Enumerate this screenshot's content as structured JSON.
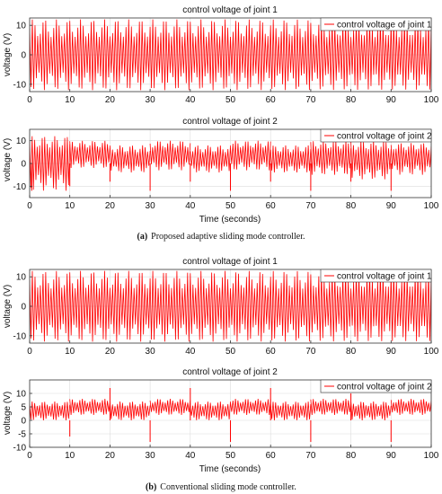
{
  "captions": {
    "a_label": "(a)",
    "a_text": "Proposed adaptive sliding mode controller.",
    "b_label": "(b)",
    "b_text": "Conventional sliding mode controller."
  },
  "colors": {
    "signal": "#ff0000",
    "axis": "#333333",
    "grid": "#dcdcdc"
  },
  "chart_data": [
    {
      "type": "line",
      "panel": "a",
      "title": "control voltage of joint 1",
      "xlabel": "",
      "ylabel": "voltage (V)",
      "xlim": [
        0,
        100
      ],
      "ylim": [
        -12.5,
        12.5
      ],
      "xticks": [
        0,
        10,
        20,
        30,
        40,
        50,
        60,
        70,
        80,
        90,
        100
      ],
      "yticks": [
        -10,
        0,
        10
      ],
      "grid": true,
      "legend": "top-right",
      "series": [
        {
          "name": "control voltage of joint 1",
          "segments": [
            {
              "x_start": 0,
              "x_end": 100,
              "min": -12,
              "max": 12,
              "center": 0,
              "oscillations_per_second": 3
            }
          ]
        }
      ]
    },
    {
      "type": "line",
      "panel": "a",
      "title": "control voltage of joint 2",
      "xlabel": "Time (seconds)",
      "ylabel": "voltage (V)",
      "xlim": [
        0,
        100
      ],
      "ylim": [
        -15,
        15
      ],
      "xticks": [
        0,
        10,
        20,
        30,
        40,
        50,
        60,
        70,
        80,
        90,
        100
      ],
      "yticks": [
        -10,
        0,
        10
      ],
      "grid": true,
      "legend": "top-right",
      "series": [
        {
          "name": "control voltage of joint 2",
          "segments": [
            {
              "x_start": 0,
              "x_end": 10,
              "min": -12,
              "max": 12,
              "center": 2
            },
            {
              "x_start": 10,
              "x_end": 20,
              "min": -2,
              "max": 10,
              "center": 4
            },
            {
              "x_start": 20,
              "x_end": 30,
              "min": -4,
              "max": 8,
              "center": 2
            },
            {
              "x_start": 30,
              "x_end": 40,
              "min": -3,
              "max": 10,
              "center": 4
            },
            {
              "x_start": 40,
              "x_end": 50,
              "min": -4,
              "max": 8,
              "center": 2
            },
            {
              "x_start": 50,
              "x_end": 60,
              "min": -3,
              "max": 10,
              "center": 4
            },
            {
              "x_start": 60,
              "x_end": 70,
              "min": -4,
              "max": 8,
              "center": 2
            },
            {
              "x_start": 70,
              "x_end": 80,
              "min": -5,
              "max": 10,
              "center": 3
            },
            {
              "x_start": 80,
              "x_end": 90,
              "min": -7,
              "max": 10,
              "center": 2
            },
            {
              "x_start": 90,
              "x_end": 100,
              "min": -5,
              "max": 9,
              "center": 3
            }
          ],
          "spikes": [
            {
              "x": 0.5,
              "y": -12
            },
            {
              "x": 10,
              "y": -10
            },
            {
              "x": 20,
              "y": -8
            },
            {
              "x": 30,
              "y": -12
            },
            {
              "x": 40,
              "y": -8
            },
            {
              "x": 50,
              "y": -12
            },
            {
              "x": 60,
              "y": -8
            },
            {
              "x": 70,
              "y": -12
            },
            {
              "x": 80,
              "y": -8
            },
            {
              "x": 90,
              "y": -12
            }
          ]
        }
      ]
    },
    {
      "type": "line",
      "panel": "b",
      "title": "control voltage of joint 1",
      "xlabel": "",
      "ylabel": "voltage (V)",
      "xlim": [
        0,
        100
      ],
      "ylim": [
        -12.5,
        12.5
      ],
      "xticks": [
        0,
        10,
        20,
        30,
        40,
        50,
        60,
        70,
        80,
        90,
        100
      ],
      "yticks": [
        -10,
        0,
        10
      ],
      "grid": true,
      "legend": "top-right",
      "series": [
        {
          "name": "control voltage of joint 1",
          "segments": [
            {
              "x_start": 0,
              "x_end": 100,
              "min": -12,
              "max": 12,
              "center": 0,
              "oscillations_per_second": 3
            }
          ]
        }
      ]
    },
    {
      "type": "line",
      "panel": "b",
      "title": "control voltage of joint 2",
      "xlabel": "Time (seconds)",
      "ylabel": "voltage (V)",
      "xlim": [
        0,
        100
      ],
      "ylim": [
        -10,
        15
      ],
      "xticks": [
        0,
        10,
        20,
        30,
        40,
        50,
        60,
        70,
        80,
        90,
        100
      ],
      "yticks": [
        -10,
        -5,
        0,
        5,
        10
      ],
      "grid": true,
      "legend": "top-right",
      "series": [
        {
          "name": "control voltage of joint 2",
          "segments": [
            {
              "x_start": 0,
              "x_end": 10,
              "min": 0,
              "max": 7,
              "center": 3.5
            },
            {
              "x_start": 10,
              "x_end": 20,
              "min": 2,
              "max": 8,
              "center": 5
            },
            {
              "x_start": 20,
              "x_end": 30,
              "min": 0,
              "max": 7,
              "center": 3.5
            },
            {
              "x_start": 30,
              "x_end": 40,
              "min": 2,
              "max": 8,
              "center": 5
            },
            {
              "x_start": 40,
              "x_end": 50,
              "min": 0,
              "max": 7,
              "center": 3.5
            },
            {
              "x_start": 50,
              "x_end": 60,
              "min": 2,
              "max": 8,
              "center": 5
            },
            {
              "x_start": 60,
              "x_end": 70,
              "min": 0,
              "max": 7,
              "center": 3.5
            },
            {
              "x_start": 70,
              "x_end": 80,
              "min": 2,
              "max": 8,
              "center": 5
            },
            {
              "x_start": 80,
              "x_end": 90,
              "min": 0,
              "max": 7,
              "center": 3.5
            },
            {
              "x_start": 90,
              "x_end": 100,
              "min": 2,
              "max": 8,
              "center": 5
            }
          ],
          "spikes": [
            {
              "x": 10,
              "y": -6
            },
            {
              "x": 20,
              "y": 12
            },
            {
              "x": 30,
              "y": -8
            },
            {
              "x": 40,
              "y": 12
            },
            {
              "x": 50,
              "y": -8
            },
            {
              "x": 60,
              "y": 12
            },
            {
              "x": 70,
              "y": -8
            },
            {
              "x": 80,
              "y": 10
            },
            {
              "x": 90,
              "y": -8
            }
          ]
        }
      ]
    }
  ]
}
